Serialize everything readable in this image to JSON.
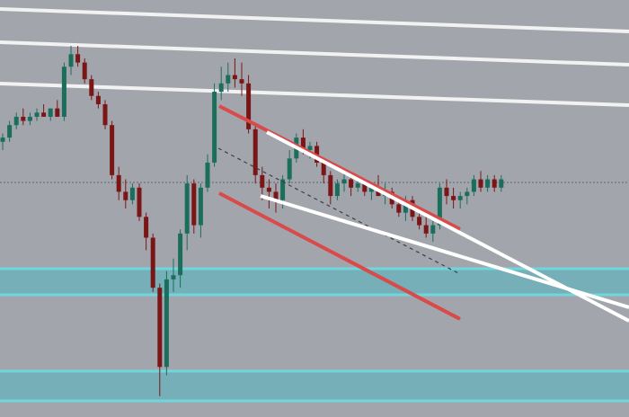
{
  "chart_data": {
    "type": "candlestick",
    "ylim": [
      0,
      100
    ],
    "up_color": "#1b6e5c",
    "down_color": "#7a1616",
    "open": [
      66,
      67,
      70,
      72,
      71,
      72,
      73,
      72,
      74,
      72,
      84,
      87,
      85,
      81,
      77,
      75,
      70,
      58,
      54,
      52,
      55,
      48,
      43,
      31,
      12,
      33,
      34,
      44,
      56,
      46,
      55,
      61,
      78,
      80,
      82,
      81,
      80,
      69,
      58,
      55,
      54,
      52,
      57,
      62,
      67,
      64,
      65,
      61,
      58,
      53,
      56,
      57,
      55,
      56,
      54,
      55,
      53,
      54,
      51,
      49,
      52,
      48,
      46,
      44,
      46,
      55,
      53,
      52,
      53,
      54,
      57,
      55,
      57,
      55
    ],
    "high": [
      68,
      71,
      73,
      74,
      73,
      74,
      75,
      74,
      76,
      85,
      89,
      89,
      86,
      82,
      78,
      76,
      71,
      60,
      57,
      56,
      56,
      49,
      44,
      32,
      35,
      38,
      45,
      58,
      57,
      56,
      63,
      80,
      84,
      85,
      86,
      85,
      82,
      70,
      60,
      57,
      56,
      58,
      64,
      68,
      69,
      66,
      66,
      62,
      59,
      57,
      59,
      58,
      58,
      57,
      56,
      58,
      56,
      55,
      53,
      53,
      53,
      50,
      48,
      47,
      56,
      57,
      55,
      54,
      55,
      58,
      59,
      58,
      58,
      58
    ],
    "low": [
      64,
      66,
      69,
      70,
      70,
      71,
      72,
      71,
      72,
      71,
      82,
      84,
      80,
      76,
      74,
      69,
      57,
      52,
      50,
      51,
      47,
      40,
      30,
      5,
      10,
      30,
      31,
      40,
      44,
      43,
      54,
      60,
      76,
      78,
      79,
      77,
      68,
      56,
      52,
      50,
      49,
      50,
      56,
      61,
      63,
      62,
      60,
      56,
      51,
      52,
      54,
      53,
      54,
      53,
      52,
      53,
      51,
      50,
      48,
      47,
      47,
      45,
      43,
      42,
      45,
      51,
      50,
      50,
      51,
      53,
      54,
      54,
      54,
      54
    ],
    "close": [
      67,
      70,
      72,
      71,
      72,
      73,
      72,
      74,
      72,
      84,
      87,
      85,
      81,
      77,
      75,
      70,
      58,
      54,
      52,
      55,
      48,
      43,
      31,
      12,
      33,
      34,
      44,
      56,
      46,
      55,
      61,
      78,
      80,
      82,
      81,
      80,
      69,
      58,
      55,
      54,
      52,
      57,
      62,
      67,
      64,
      65,
      61,
      58,
      53,
      56,
      57,
      55,
      56,
      54,
      55,
      53,
      54,
      51,
      49,
      52,
      48,
      46,
      44,
      46,
      55,
      53,
      52,
      53,
      54,
      57,
      55,
      57,
      55,
      57
    ]
  }
}
